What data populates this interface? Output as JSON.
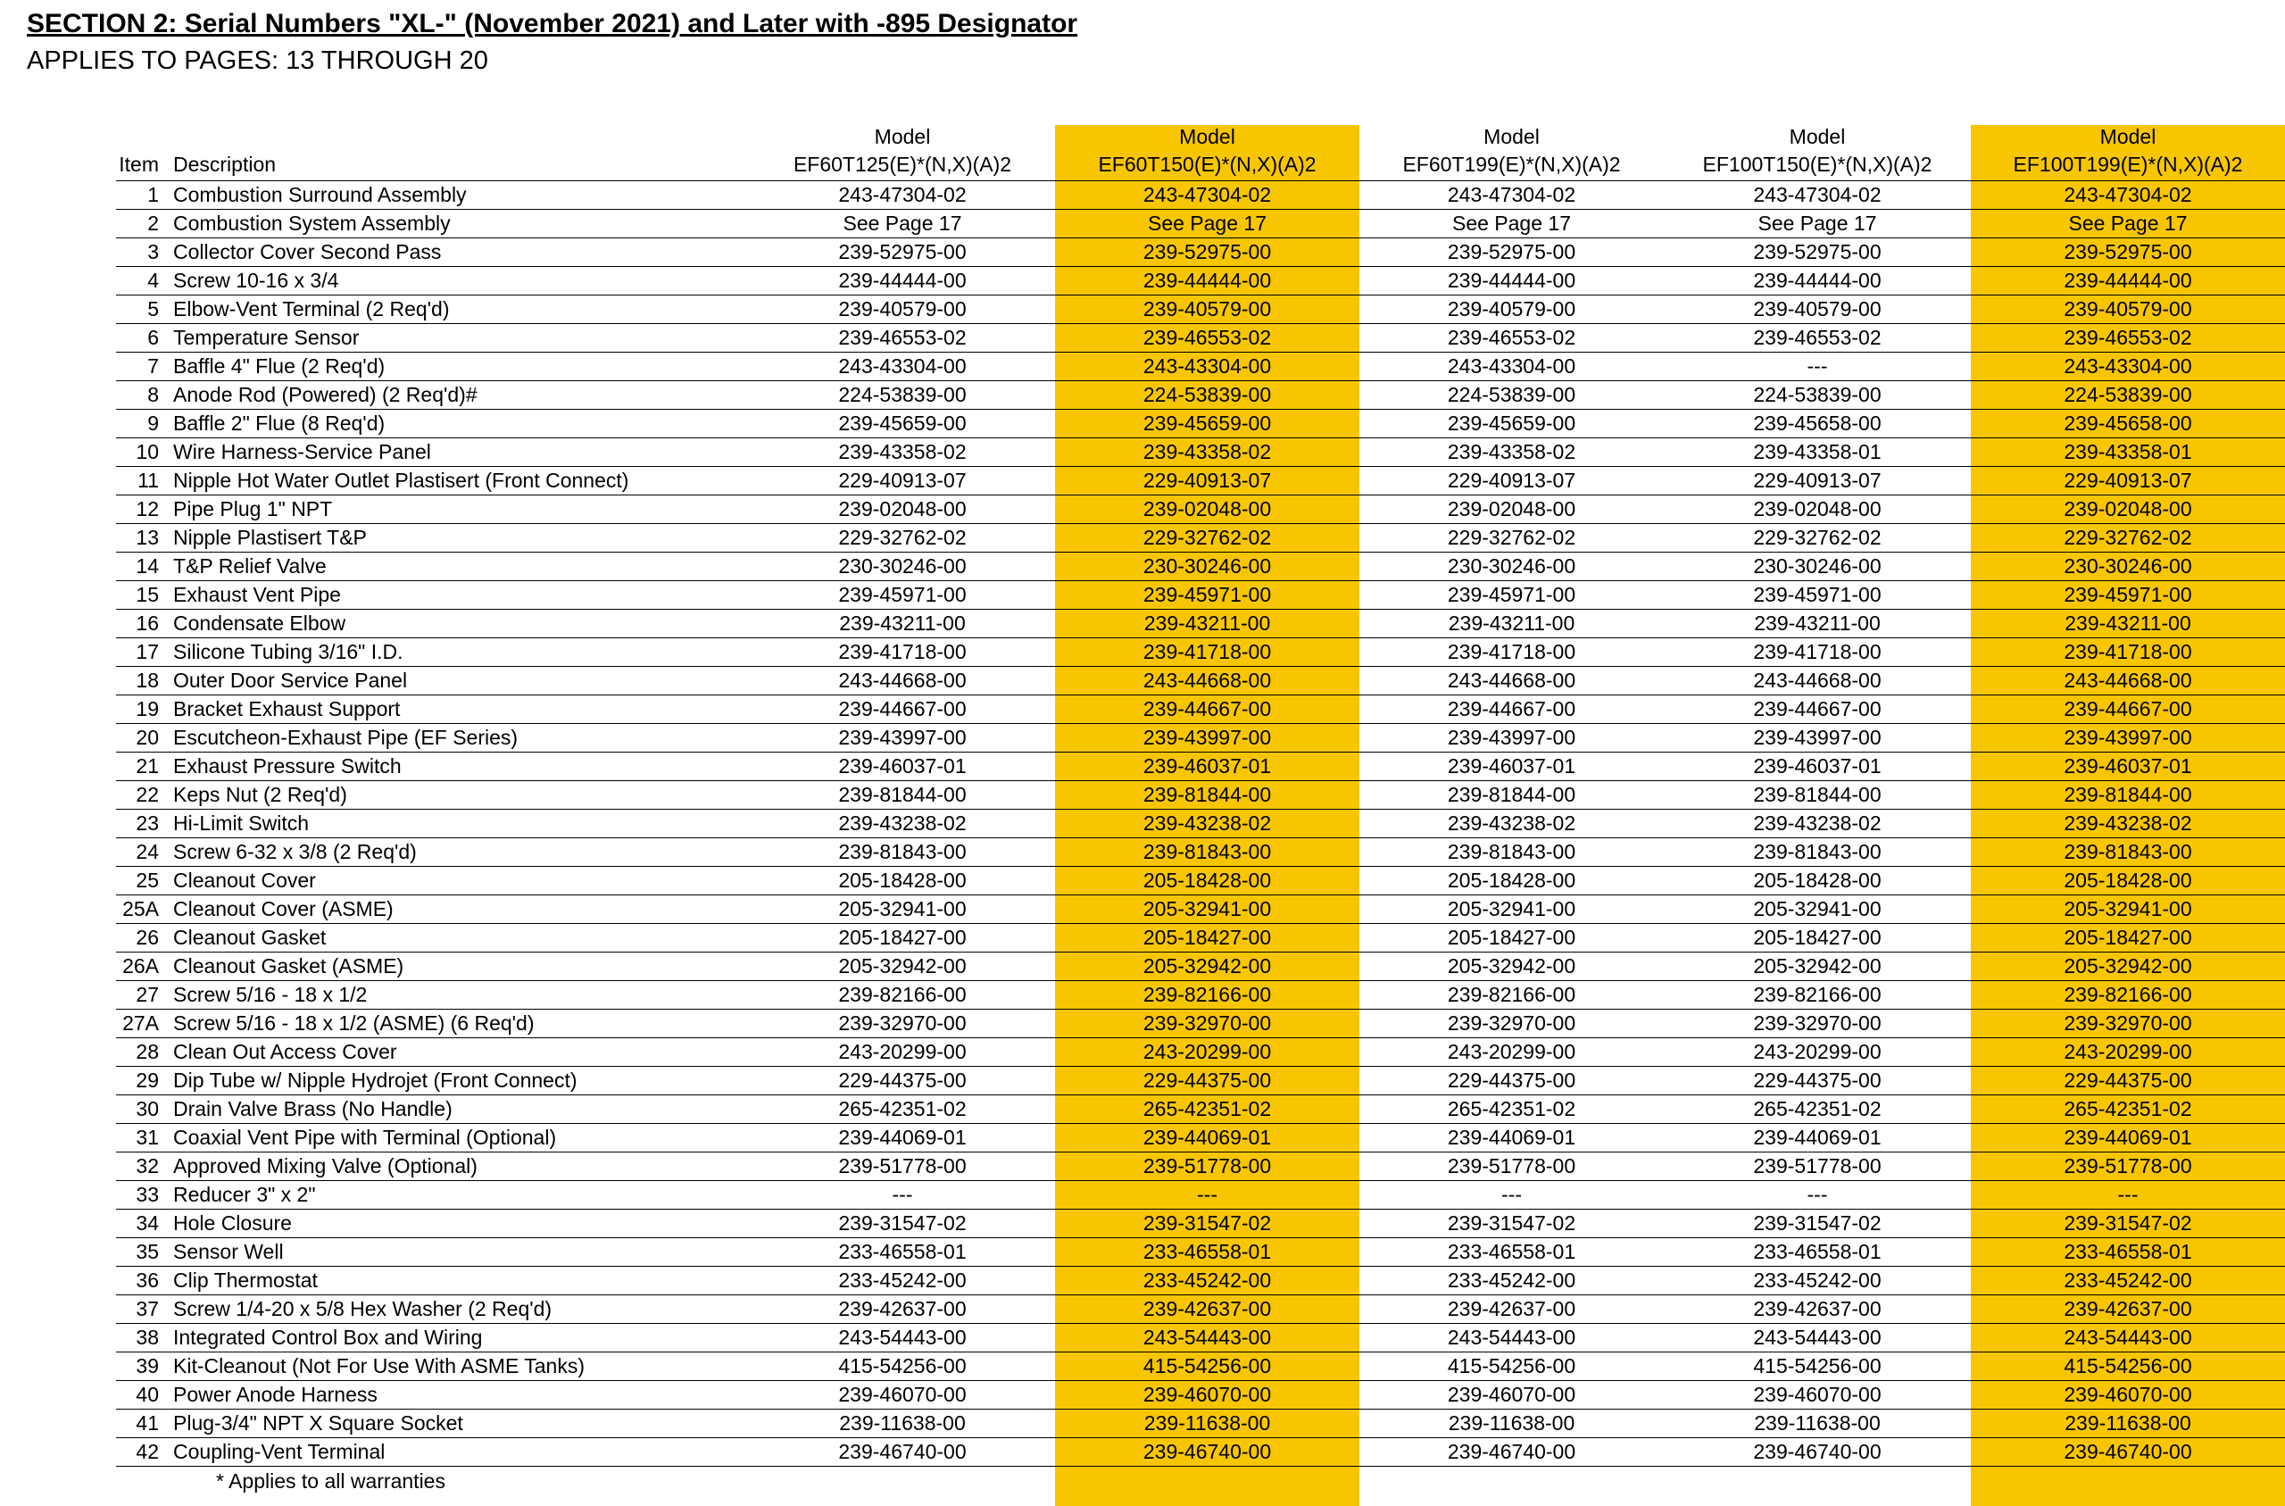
{
  "page": {
    "title": "SECTION 2: Serial Numbers \"XL-\" (November 2021) and Later with -895 Designator",
    "subtitle": "APPLIES TO PAGES: 13 THROUGH 20",
    "footnote": "* Applies to all warranties",
    "highlight_color": "#F7C600"
  },
  "table": {
    "model_label": "Model",
    "item_header": "Item",
    "description_header": "Description",
    "model_columns": [
      {
        "name": "EF60T125(E)*(N,X)(A)2",
        "highlighted": false
      },
      {
        "name": "EF60T150(E)*(N,X)(A)2",
        "highlighted": true
      },
      {
        "name": "EF60T199(E)*(N,X)(A)2",
        "highlighted": false
      },
      {
        "name": "EF100T150(E)*(N,X)(A)2",
        "highlighted": false
      },
      {
        "name": "EF100T199(E)*(N,X)(A)2",
        "highlighted": true
      }
    ],
    "rows": [
      {
        "item": "1",
        "description": "Combustion Surround Assembly",
        "values": [
          "243-47304-02",
          "243-47304-02",
          "243-47304-02",
          "243-47304-02",
          "243-47304-02"
        ]
      },
      {
        "item": "2",
        "description": "Combustion System Assembly",
        "values": [
          "See Page 17",
          "See Page 17",
          "See Page 17",
          "See Page 17",
          "See Page 17"
        ]
      },
      {
        "item": "3",
        "description": "Collector Cover Second Pass",
        "values": [
          "239-52975-00",
          "239-52975-00",
          "239-52975-00",
          "239-52975-00",
          "239-52975-00"
        ]
      },
      {
        "item": "4",
        "description": "Screw 10-16 x 3/4",
        "values": [
          "239-44444-00",
          "239-44444-00",
          "239-44444-00",
          "239-44444-00",
          "239-44444-00"
        ]
      },
      {
        "item": "5",
        "description": "Elbow-Vent Terminal (2 Req'd)",
        "values": [
          "239-40579-00",
          "239-40579-00",
          "239-40579-00",
          "239-40579-00",
          "239-40579-00"
        ]
      },
      {
        "item": "6",
        "description": "Temperature Sensor",
        "values": [
          "239-46553-02",
          "239-46553-02",
          "239-46553-02",
          "239-46553-02",
          "239-46553-02"
        ]
      },
      {
        "item": "7",
        "description": "Baffle 4\" Flue (2 Req'd)",
        "values": [
          "243-43304-00",
          "243-43304-00",
          "243-43304-00",
          "---",
          "243-43304-00"
        ]
      },
      {
        "item": "8",
        "description": "Anode Rod (Powered) (2 Req'd)#",
        "values": [
          "224-53839-00",
          "224-53839-00",
          "224-53839-00",
          "224-53839-00",
          "224-53839-00"
        ]
      },
      {
        "item": "9",
        "description": "Baffle 2\" Flue (8 Req'd)",
        "values": [
          "239-45659-00",
          "239-45659-00",
          "239-45659-00",
          "239-45658-00",
          "239-45658-00"
        ]
      },
      {
        "item": "10",
        "description": "Wire Harness-Service Panel",
        "values": [
          "239-43358-02",
          "239-43358-02",
          "239-43358-02",
          "239-43358-01",
          "239-43358-01"
        ]
      },
      {
        "item": "11",
        "description": "Nipple Hot Water Outlet Plastisert (Front Connect)",
        "values": [
          "229-40913-07",
          "229-40913-07",
          "229-40913-07",
          "229-40913-07",
          "229-40913-07"
        ]
      },
      {
        "item": "12",
        "description": "Pipe Plug 1\" NPT",
        "values": [
          "239-02048-00",
          "239-02048-00",
          "239-02048-00",
          "239-02048-00",
          "239-02048-00"
        ]
      },
      {
        "item": "13",
        "description": "Nipple Plastisert T&P",
        "values": [
          "229-32762-02",
          "229-32762-02",
          "229-32762-02",
          "229-32762-02",
          "229-32762-02"
        ]
      },
      {
        "item": "14",
        "description": "T&P Relief Valve",
        "values": [
          "230-30246-00",
          "230-30246-00",
          "230-30246-00",
          "230-30246-00",
          "230-30246-00"
        ]
      },
      {
        "item": "15",
        "description": "Exhaust Vent Pipe",
        "values": [
          "239-45971-00",
          "239-45971-00",
          "239-45971-00",
          "239-45971-00",
          "239-45971-00"
        ]
      },
      {
        "item": "16",
        "description": "Condensate Elbow",
        "values": [
          "239-43211-00",
          "239-43211-00",
          "239-43211-00",
          "239-43211-00",
          "239-43211-00"
        ]
      },
      {
        "item": "17",
        "description": "Silicone Tubing 3/16\" I.D.",
        "values": [
          "239-41718-00",
          "239-41718-00",
          "239-41718-00",
          "239-41718-00",
          "239-41718-00"
        ]
      },
      {
        "item": "18",
        "description": "Outer Door Service Panel",
        "values": [
          "243-44668-00",
          "243-44668-00",
          "243-44668-00",
          "243-44668-00",
          "243-44668-00"
        ]
      },
      {
        "item": "19",
        "description": "Bracket Exhaust Support",
        "values": [
          "239-44667-00",
          "239-44667-00",
          "239-44667-00",
          "239-44667-00",
          "239-44667-00"
        ]
      },
      {
        "item": "20",
        "description": "Escutcheon-Exhaust Pipe (EF Series)",
        "values": [
          "239-43997-00",
          "239-43997-00",
          "239-43997-00",
          "239-43997-00",
          "239-43997-00"
        ]
      },
      {
        "item": "21",
        "description": "Exhaust Pressure Switch",
        "values": [
          "239-46037-01",
          "239-46037-01",
          "239-46037-01",
          "239-46037-01",
          "239-46037-01"
        ]
      },
      {
        "item": "22",
        "description": "Keps Nut (2 Req'd)",
        "values": [
          "239-81844-00",
          "239-81844-00",
          "239-81844-00",
          "239-81844-00",
          "239-81844-00"
        ]
      },
      {
        "item": "23",
        "description": "Hi-Limit Switch",
        "values": [
          "239-43238-02",
          "239-43238-02",
          "239-43238-02",
          "239-43238-02",
          "239-43238-02"
        ]
      },
      {
        "item": "24",
        "description": "Screw 6-32 x 3/8 (2 Req'd)",
        "values": [
          "239-81843-00",
          "239-81843-00",
          "239-81843-00",
          "239-81843-00",
          "239-81843-00"
        ]
      },
      {
        "item": "25",
        "description": "Cleanout Cover",
        "values": [
          "205-18428-00",
          "205-18428-00",
          "205-18428-00",
          "205-18428-00",
          "205-18428-00"
        ]
      },
      {
        "item": "25A",
        "description": "Cleanout Cover (ASME)",
        "values": [
          "205-32941-00",
          "205-32941-00",
          "205-32941-00",
          "205-32941-00",
          "205-32941-00"
        ]
      },
      {
        "item": "26",
        "description": "Cleanout Gasket",
        "values": [
          "205-18427-00",
          "205-18427-00",
          "205-18427-00",
          "205-18427-00",
          "205-18427-00"
        ]
      },
      {
        "item": "26A",
        "description": "Cleanout Gasket (ASME)",
        "values": [
          "205-32942-00",
          "205-32942-00",
          "205-32942-00",
          "205-32942-00",
          "205-32942-00"
        ]
      },
      {
        "item": "27",
        "description": "Screw 5/16 - 18 x 1/2",
        "values": [
          "239-82166-00",
          "239-82166-00",
          "239-82166-00",
          "239-82166-00",
          "239-82166-00"
        ]
      },
      {
        "item": "27A",
        "description": "Screw 5/16 - 18 x 1/2 (ASME) (6 Req'd)",
        "values": [
          "239-32970-00",
          "239-32970-00",
          "239-32970-00",
          "239-32970-00",
          "239-32970-00"
        ]
      },
      {
        "item": "28",
        "description": "Clean Out Access Cover",
        "values": [
          "243-20299-00",
          "243-20299-00",
          "243-20299-00",
          "243-20299-00",
          "243-20299-00"
        ]
      },
      {
        "item": "29",
        "description": "Dip Tube w/ Nipple Hydrojet (Front Connect)",
        "values": [
          "229-44375-00",
          "229-44375-00",
          "229-44375-00",
          "229-44375-00",
          "229-44375-00"
        ]
      },
      {
        "item": "30",
        "description": "Drain Valve Brass (No Handle)",
        "values": [
          "265-42351-02",
          "265-42351-02",
          "265-42351-02",
          "265-42351-02",
          "265-42351-02"
        ]
      },
      {
        "item": "31",
        "description": "Coaxial Vent Pipe with Terminal (Optional)",
        "values": [
          "239-44069-01",
          "239-44069-01",
          "239-44069-01",
          "239-44069-01",
          "239-44069-01"
        ]
      },
      {
        "item": "32",
        "description": "Approved Mixing Valve (Optional)",
        "values": [
          "239-51778-00",
          "239-51778-00",
          "239-51778-00",
          "239-51778-00",
          "239-51778-00"
        ]
      },
      {
        "item": "33",
        "description": "Reducer 3\" x 2\"",
        "values": [
          "---",
          "---",
          "---",
          "---",
          "---"
        ]
      },
      {
        "item": "34",
        "description": "Hole Closure",
        "values": [
          "239-31547-02",
          "239-31547-02",
          "239-31547-02",
          "239-31547-02",
          "239-31547-02"
        ]
      },
      {
        "item": "35",
        "description": "Sensor Well",
        "values": [
          "233-46558-01",
          "233-46558-01",
          "233-46558-01",
          "233-46558-01",
          "233-46558-01"
        ]
      },
      {
        "item": "36",
        "description": "Clip Thermostat",
        "values": [
          "233-45242-00",
          "233-45242-00",
          "233-45242-00",
          "233-45242-00",
          "233-45242-00"
        ]
      },
      {
        "item": "37",
        "description": "Screw 1/4-20 x 5/8 Hex Washer (2 Req'd)",
        "values": [
          "239-42637-00",
          "239-42637-00",
          "239-42637-00",
          "239-42637-00",
          "239-42637-00"
        ]
      },
      {
        "item": "38",
        "description": "Integrated Control Box and Wiring",
        "values": [
          "243-54443-00",
          "243-54443-00",
          "243-54443-00",
          "243-54443-00",
          "243-54443-00"
        ]
      },
      {
        "item": "39",
        "description": "Kit-Cleanout (Not For Use With ASME Tanks)",
        "values": [
          "415-54256-00",
          "415-54256-00",
          "415-54256-00",
          "415-54256-00",
          "415-54256-00"
        ]
      },
      {
        "item": "40",
        "description": "Power Anode Harness",
        "values": [
          "239-46070-00",
          "239-46070-00",
          "239-46070-00",
          "239-46070-00",
          "239-46070-00"
        ]
      },
      {
        "item": "41",
        "description": "Plug-3/4\" NPT X Square Socket",
        "values": [
          "239-11638-00",
          "239-11638-00",
          "239-11638-00",
          "239-11638-00",
          "239-11638-00"
        ]
      },
      {
        "item": "42",
        "description": "Coupling-Vent Terminal",
        "values": [
          "239-46740-00",
          "239-46740-00",
          "239-46740-00",
          "239-46740-00",
          "239-46740-00"
        ]
      }
    ]
  }
}
